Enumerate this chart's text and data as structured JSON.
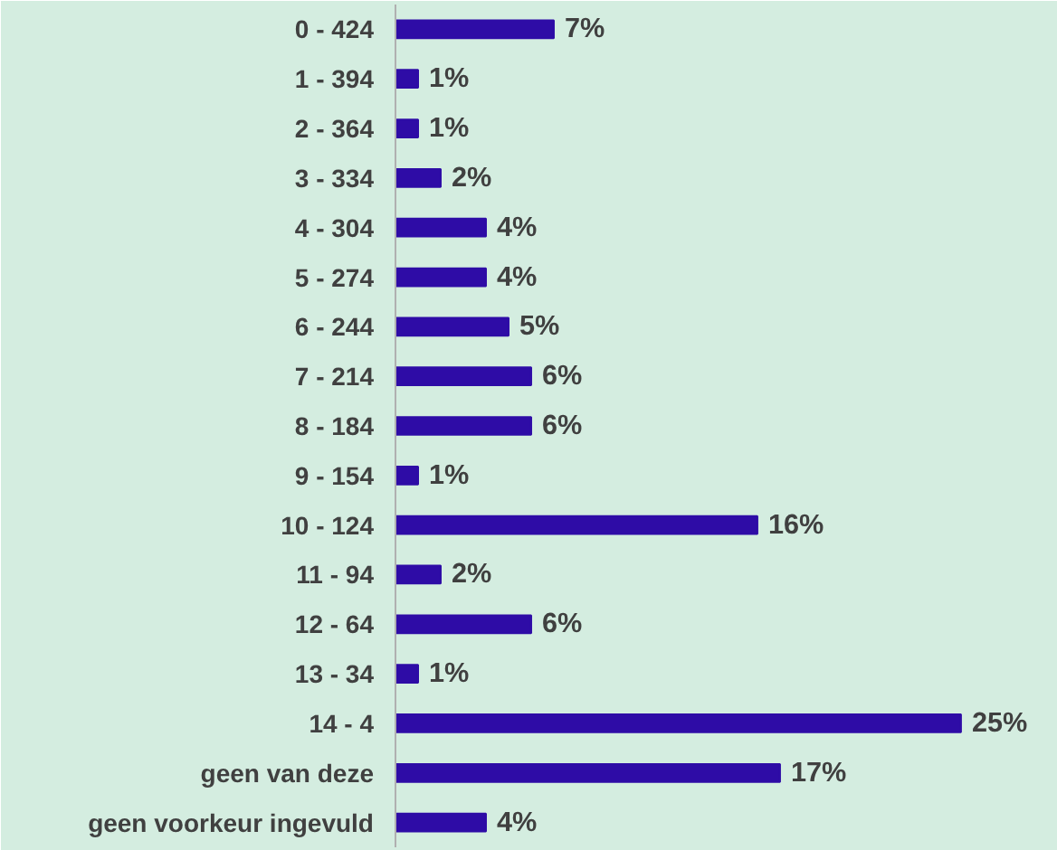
{
  "chart_data": {
    "type": "bar",
    "orientation": "horizontal",
    "categories": [
      "0 - 424",
      "1 - 394",
      "2 - 364",
      "3 - 334",
      "4 - 304",
      "5 - 274",
      "6 - 244",
      "7 - 214",
      "8 - 184",
      "9 - 154",
      "10 - 124",
      "11 - 94",
      "12 - 64",
      "13 - 34",
      "14 - 4",
      "geen van deze",
      "geen voorkeur ingevuld"
    ],
    "values": [
      7,
      1,
      1,
      2,
      4,
      4,
      5,
      6,
      6,
      1,
      16,
      2,
      6,
      1,
      25,
      17,
      4
    ],
    "value_labels": [
      "7%",
      "1%",
      "1%",
      "2%",
      "4%",
      "4%",
      "5%",
      "6%",
      "6%",
      "1%",
      "16%",
      "2%",
      "6%",
      "1%",
      "25%",
      "17%",
      "4%"
    ],
    "color": "#2e0ca6"
  }
}
